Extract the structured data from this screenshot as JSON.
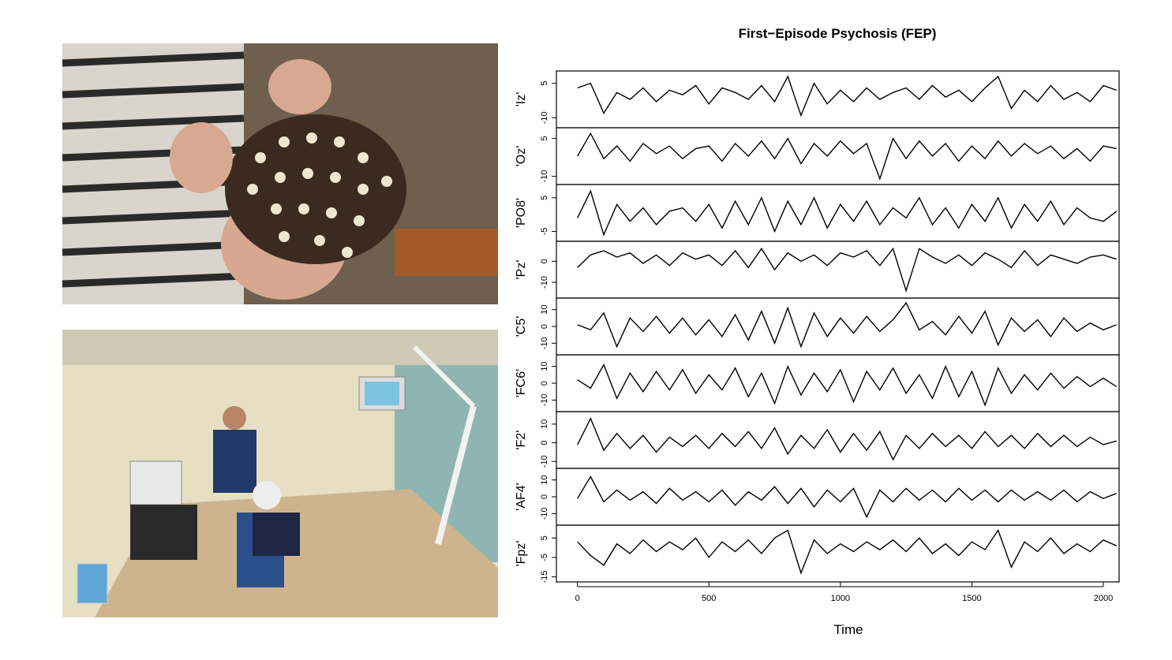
{
  "chart_data": {
    "type": "line",
    "title": "First−Episode Psychosis (FEP)",
    "x_label": "Time",
    "xlim": [
      -80,
      2060
    ],
    "xticks": [
      0,
      500,
      1000,
      1500,
      2000
    ],
    "x": [
      0,
      50,
      100,
      150,
      200,
      250,
      300,
      350,
      400,
      450,
      500,
      550,
      600,
      650,
      700,
      750,
      800,
      850,
      900,
      950,
      1000,
      1050,
      1100,
      1150,
      1200,
      1250,
      1300,
      1350,
      1400,
      1450,
      1500,
      1550,
      1600,
      1650,
      1700,
      1750,
      1800,
      1850,
      1900,
      1950,
      2000,
      2050
    ],
    "series": [
      {
        "name": "'Iz'",
        "color": "#000000",
        "ylim": [
          -13,
          9
        ],
        "yticks": [
          -10,
          5
        ],
        "values": [
          3,
          5,
          -8,
          1,
          -2,
          3,
          -3,
          2,
          0,
          4,
          -4,
          3,
          1,
          -2,
          4,
          -3,
          8,
          -9,
          5,
          -4,
          2,
          -3,
          3,
          -2,
          1,
          3,
          -2,
          4,
          -1,
          2,
          -3,
          3,
          8,
          -6,
          2,
          -3,
          4,
          -2,
          1,
          -3,
          4,
          2
        ]
      },
      {
        "name": "'Oz'",
        "color": "#000000",
        "ylim": [
          -12,
          8
        ],
        "yticks": [
          -10,
          5
        ],
        "values": [
          -2,
          7,
          -3,
          2,
          -4,
          3,
          -1,
          2,
          -3,
          1,
          2,
          -4,
          3,
          -2,
          4,
          -3,
          5,
          -5,
          3,
          -2,
          4,
          -1,
          3,
          -11,
          5,
          -3,
          4,
          -2,
          3,
          -4,
          2,
          -3,
          4,
          -2,
          3,
          -1,
          2,
          -3,
          1,
          -4,
          2,
          1
        ]
      },
      {
        "name": "'PO8'",
        "color": "#000000",
        "ylim": [
          -7,
          8
        ],
        "yticks": [
          -5,
          5
        ],
        "values": [
          -1,
          7,
          -6,
          3,
          -2,
          2,
          -3,
          1,
          2,
          -2,
          3,
          -4,
          4,
          -3,
          5,
          -5,
          4,
          -3,
          5,
          -4,
          3,
          -2,
          4,
          -3,
          2,
          -1,
          5,
          -3,
          2,
          -4,
          3,
          -2,
          5,
          -4,
          3,
          -2,
          4,
          -3,
          2,
          -1,
          -2,
          1
        ]
      },
      {
        "name": "'Pz'",
        "color": "#000000",
        "ylim": [
          -16,
          8
        ],
        "yticks": [
          -10,
          0
        ],
        "values": [
          -3,
          3,
          5,
          2,
          4,
          -1,
          3,
          -2,
          4,
          1,
          3,
          -2,
          5,
          -3,
          6,
          -4,
          4,
          0,
          3,
          -2,
          4,
          2,
          5,
          -2,
          6,
          -14,
          6,
          2,
          -1,
          3,
          -2,
          4,
          1,
          -3,
          5,
          -2,
          3,
          1,
          -1,
          2,
          3,
          1
        ]
      },
      {
        "name": "'C5'",
        "color": "#000000",
        "ylim": [
          -15,
          15
        ],
        "yticks": [
          -10,
          0,
          10
        ],
        "values": [
          1,
          -2,
          8,
          -12,
          5,
          -3,
          6,
          -4,
          5,
          -5,
          4,
          -6,
          7,
          -8,
          9,
          -10,
          11,
          -12,
          8,
          -6,
          5,
          -4,
          6,
          -3,
          4,
          14,
          -2,
          3,
          -5,
          6,
          -4,
          9,
          -11,
          5,
          -3,
          4,
          -6,
          5,
          -3,
          2,
          -2,
          1
        ]
      },
      {
        "name": "'FC6'",
        "color": "#000000",
        "ylim": [
          -15,
          15
        ],
        "yticks": [
          -10,
          0,
          10
        ],
        "values": [
          2,
          -3,
          11,
          -9,
          6,
          -5,
          7,
          -4,
          8,
          -6,
          5,
          -4,
          9,
          -8,
          6,
          -12,
          10,
          -7,
          6,
          -5,
          8,
          -11,
          7,
          -4,
          9,
          -6,
          5,
          -9,
          10,
          -8,
          7,
          -13,
          9,
          -6,
          5,
          -4,
          6,
          -3,
          4,
          -2,
          3,
          -2
        ]
      },
      {
        "name": "'F2'",
        "color": "#000000",
        "ylim": [
          -12,
          15
        ],
        "yticks": [
          -10,
          0,
          10
        ],
        "values": [
          -1,
          13,
          -4,
          5,
          -3,
          4,
          -5,
          3,
          -2,
          4,
          -3,
          5,
          -2,
          6,
          -3,
          8,
          -6,
          4,
          -3,
          7,
          -5,
          5,
          -4,
          6,
          -9,
          4,
          -3,
          5,
          -2,
          4,
          -3,
          6,
          -2,
          4,
          -3,
          5,
          -2,
          4,
          -2,
          3,
          -1,
          1
        ]
      },
      {
        "name": "'AF4'",
        "color": "#000000",
        "ylim": [
          -15,
          15
        ],
        "yticks": [
          -10,
          0,
          10
        ],
        "values": [
          -1,
          12,
          -3,
          4,
          -2,
          3,
          -4,
          5,
          -2,
          3,
          -3,
          4,
          -5,
          3,
          -2,
          6,
          -4,
          5,
          -6,
          4,
          -3,
          5,
          -12,
          4,
          -3,
          5,
          -2,
          4,
          -3,
          5,
          -2,
          4,
          -3,
          4,
          -2,
          3,
          -2,
          4,
          -3,
          3,
          -1,
          2
        ]
      },
      {
        "name": "'Fpz'",
        "color": "#000000",
        "ylim": [
          -16,
          10
        ],
        "yticks": [
          -15,
          -5,
          5
        ],
        "values": [
          3,
          -4,
          -9,
          2,
          -3,
          4,
          -2,
          3,
          -1,
          5,
          -5,
          3,
          -2,
          4,
          -3,
          5,
          9,
          -13,
          4,
          -3,
          2,
          -2,
          3,
          -1,
          4,
          -2,
          5,
          -3,
          2,
          -4,
          3,
          -1,
          9,
          -10,
          3,
          -2,
          5,
          -3,
          2,
          -2,
          4,
          1
        ]
      }
    ]
  }
}
